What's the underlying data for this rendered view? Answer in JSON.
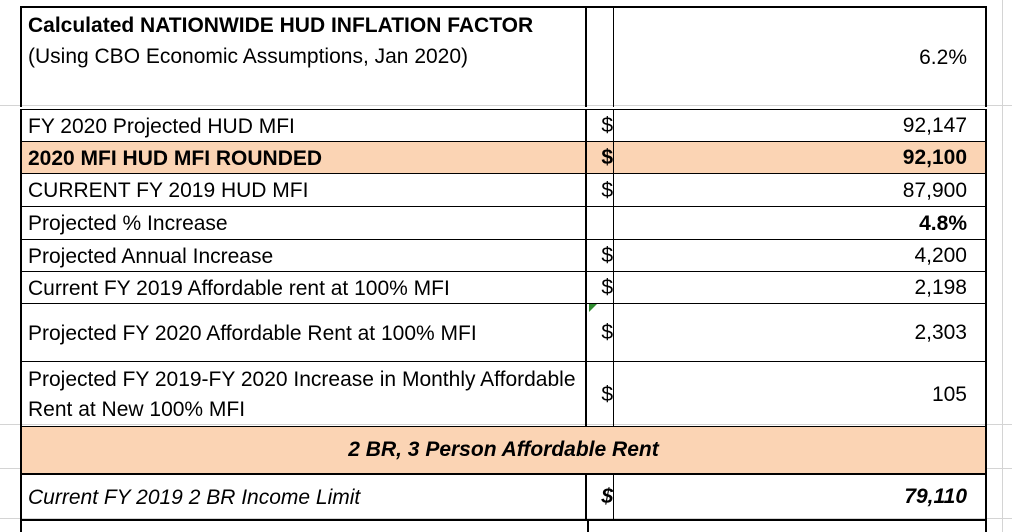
{
  "rows": {
    "r1": {
      "label_bold": "Calculated NATIONWIDE HUD INFLATION FACTOR",
      "label_rest": " (Using CBO Economic Assumptions, Jan 2020)",
      "value": "6.2%"
    },
    "r2": {
      "label": "FY 2020 Projected HUD MFI",
      "dollar": "$",
      "value": "92,147"
    },
    "r3": {
      "label": "2020 MFI HUD MFI ROUNDED",
      "dollar": "$",
      "value": "92,100"
    },
    "r4": {
      "label": "CURRENT FY 2019 HUD MFI",
      "dollar": "$",
      "value": "87,900"
    },
    "r5": {
      "label": "Projected % Increase",
      "value": "4.8%"
    },
    "r6": {
      "label": "Projected Annual Increase",
      "dollar": "$",
      "value": "4,200"
    },
    "r7": {
      "label": "Current FY 2019 Affordable rent at 100% MFI",
      "dollar": "$",
      "value": "2,198"
    },
    "r8": {
      "label": "Projected FY 2020 Affordable Rent at 100% MFI",
      "dollar": "$",
      "value": "2,303"
    },
    "r9": {
      "label": "Projected FY 2019-FY 2020 Increase in Monthly Affordable Rent at New 100% MFI",
      "dollar": "$",
      "value": "105"
    },
    "section": {
      "title": "2 BR, 3 Person Affordable Rent"
    },
    "r10": {
      "label": "Current FY 2019 2 BR Income Limit",
      "dollar": "$",
      "value": "79,110"
    }
  },
  "colors": {
    "highlight": "#fbd4b4",
    "comment_marker": "#2e8b2e",
    "gridline": "#d4d4d4"
  }
}
